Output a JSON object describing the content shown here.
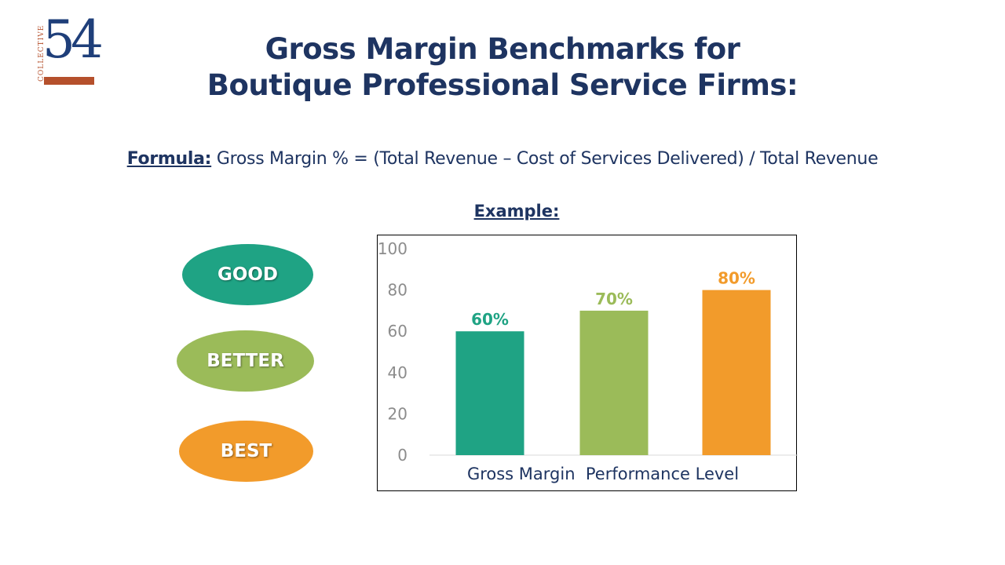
{
  "logo": {
    "text_vertical": "COLLECTIVE",
    "number": "54"
  },
  "title": {
    "line1": "Gross Margin Benchmarks for",
    "line2": "Boutique Professional Service Firms:"
  },
  "formula": {
    "label": "Formula:",
    "text": " Gross Margin % = (Total Revenue – Cost of Services Delivered) / Total Revenue"
  },
  "example_label": "Example:",
  "levels": [
    {
      "label": "GOOD",
      "color": "#1fa384"
    },
    {
      "label": "BETTER",
      "color": "#9bbb59"
    },
    {
      "label": "BEST",
      "color": "#f29b2b"
    }
  ],
  "chart_data": {
    "type": "bar",
    "categories": [
      "Gross Margin",
      "Performance Level",
      ""
    ],
    "values": [
      60,
      70,
      80
    ],
    "data_labels": [
      "60%",
      "70%",
      "80%"
    ],
    "colors": [
      "#1fa384",
      "#9bbb59",
      "#f29b2b"
    ],
    "xlabel": "Gross Margin  Performance Level",
    "ylabel": "",
    "ylim": [
      0,
      100
    ],
    "yticks": [
      "0",
      "20",
      "40",
      "60",
      "80",
      "100"
    ],
    "grid": false,
    "legend": "none"
  }
}
